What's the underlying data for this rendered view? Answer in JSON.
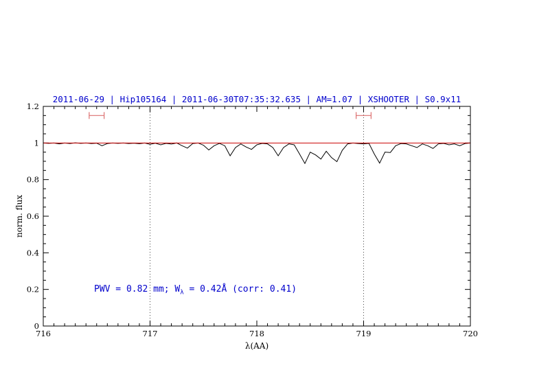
{
  "title": {
    "text": "2011-06-29 | Hip105164 | 2011-06-30T07:35:32.635 | AM=1.07 | XSHOOTER | S0.9x11",
    "color": "#0000cc"
  },
  "annotation": {
    "pre": "PWV = 0.82 mm; W",
    "sub": "λ",
    "post": " = 0.42Å (corr: 0.41)",
    "color": "#0000cc"
  },
  "axes": {
    "xlabel": "λ(AA)",
    "ylabel": "norm. flux",
    "xtick_values": [
      716,
      717,
      718,
      719,
      720
    ],
    "xtick_labels": [
      "716",
      "717",
      "718",
      "719",
      "720"
    ],
    "x_minor_step": 0.1,
    "ytick_values": [
      0,
      0.2,
      0.4,
      0.6,
      0.8,
      1,
      1.2
    ],
    "ytick_labels": [
      "0",
      "0.2",
      "0.4",
      "0.6",
      "0.8",
      "1",
      "1.2"
    ],
    "y_minor_step": 0.05
  },
  "chart_data": {
    "type": "line",
    "title": "2011-06-29 | Hip105164 | 2011-06-30T07:35:32.635 | AM=1.07 | XSHOOTER | S0.9x11",
    "xlabel": "λ(AA)",
    "ylabel": "norm. flux",
    "xlim": [
      716,
      720
    ],
    "ylim": [
      0,
      1.2
    ],
    "grid": false,
    "series": [
      {
        "name": "spectrum",
        "color": "#000000",
        "width": 1,
        "x_start": 716.0,
        "x_step": 0.05,
        "values": [
          1.0,
          0.998,
          1.0,
          0.995,
          1.0,
          0.997,
          1.001,
          0.998,
          1.0,
          0.997,
          0.999,
          0.985,
          0.997,
          1.0,
          0.998,
          1.0,
          0.997,
          0.999,
          0.996,
          1.0,
          0.993,
          0.999,
          0.99,
          0.998,
          0.994,
          1.0,
          0.985,
          0.972,
          0.997,
          1.0,
          0.988,
          0.962,
          0.985,
          0.998,
          0.985,
          0.93,
          0.975,
          0.995,
          0.978,
          0.965,
          0.99,
          0.998,
          0.995,
          0.975,
          0.93,
          0.975,
          0.995,
          0.99,
          0.94,
          0.888,
          0.95,
          0.935,
          0.912,
          0.955,
          0.92,
          0.898,
          0.96,
          0.995,
          1.0,
          0.997,
          0.995,
          0.998,
          0.94,
          0.89,
          0.95,
          0.948,
          0.985,
          0.997,
          0.995,
          0.985,
          0.975,
          0.995,
          0.985,
          0.97,
          0.995,
          0.998,
          0.99,
          0.995,
          0.985,
          0.997,
          1.0
        ]
      },
      {
        "name": "continuum",
        "color": "#cc0000",
        "width": 1,
        "x": [
          716,
          720
        ],
        "y": [
          1,
          1
        ]
      }
    ],
    "vlines": [
      {
        "x": 717,
        "style": "dotted",
        "color": "#444444"
      },
      {
        "x": 719,
        "style": "dotted",
        "color": "#444444"
      }
    ],
    "markers": [
      {
        "type": "errorbar-h",
        "x_center": 716.5,
        "x_half": 0.07,
        "y": 1.15,
        "color": "#dd7070"
      },
      {
        "type": "errorbar-h",
        "x_center": 719.0,
        "x_half": 0.07,
        "y": 1.15,
        "color": "#dd7070"
      }
    ]
  }
}
